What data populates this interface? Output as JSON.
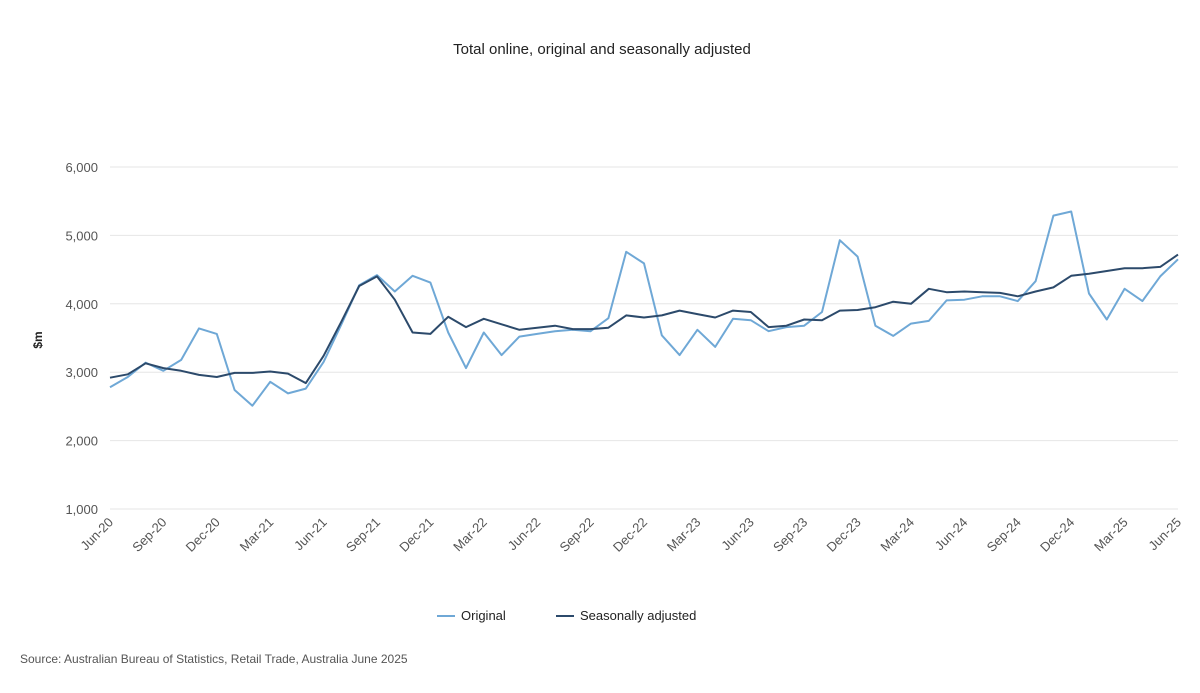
{
  "chart_data": {
    "type": "line",
    "title": "Total online, original and seasonally adjusted",
    "ylabel": "$m",
    "xlabel": "",
    "ylim": [
      1000,
      6000
    ],
    "yticks": [
      "1,000",
      "2,000",
      "3,000",
      "4,000",
      "5,000",
      "6,000"
    ],
    "ytick_values": [
      1000,
      2000,
      3000,
      4000,
      5000,
      6000
    ],
    "x_start": "Jun-20",
    "x_end": "Jun-25",
    "xtick_labels": [
      "Jun-20",
      "Sep-20",
      "Dec-20",
      "Mar-21",
      "Jun-21",
      "Sep-21",
      "Dec-21",
      "Mar-22",
      "Jun-22",
      "Sep-22",
      "Dec-22",
      "Mar-23",
      "Jun-23",
      "Sep-23",
      "Dec-23",
      "Mar-24",
      "Jun-24",
      "Sep-24",
      "Dec-24",
      "Mar-25",
      "Jun-25"
    ],
    "grid": true,
    "legend": "bottom",
    "series": [
      {
        "name": "Original",
        "color": "#6fa8d6",
        "values": [
          2780,
          2930,
          3140,
          3020,
          3180,
          3640,
          3560,
          2740,
          2510,
          2860,
          2690,
          2760,
          3150,
          3700,
          4270,
          4420,
          4180,
          4410,
          4310,
          3580,
          3060,
          3580,
          3250,
          3520,
          3560,
          3600,
          3620,
          3600,
          3790,
          4760,
          4590,
          3540,
          3250,
          3620,
          3370,
          3780,
          3760,
          3600,
          3660,
          3680,
          3880,
          4930,
          4690,
          3680,
          3530,
          3710,
          3750,
          4050,
          4060,
          4110,
          4110,
          4040,
          4330,
          5290,
          5350,
          4150,
          3770,
          4220,
          4040,
          4400,
          4650
        ]
      },
      {
        "name": "Seasonally adjusted",
        "color": "#2c4a6b",
        "values": [
          2920,
          2970,
          3130,
          3060,
          3020,
          2960,
          2930,
          2990,
          2990,
          3010,
          2980,
          2840,
          3240,
          3740,
          4260,
          4400,
          4060,
          3580,
          3560,
          3810,
          3660,
          3780,
          3700,
          3620,
          3650,
          3680,
          3630,
          3630,
          3650,
          3830,
          3800,
          3830,
          3900,
          3850,
          3800,
          3900,
          3880,
          3660,
          3680,
          3770,
          3760,
          3900,
          3910,
          3950,
          4030,
          4000,
          4220,
          4170,
          4180,
          4170,
          4160,
          4110,
          4180,
          4240,
          4410,
          4440,
          4480,
          4520,
          4520,
          4540,
          4720
        ]
      }
    ]
  },
  "source": "Source: Australian Bureau of Statistics, Retail Trade, Australia June 2025"
}
